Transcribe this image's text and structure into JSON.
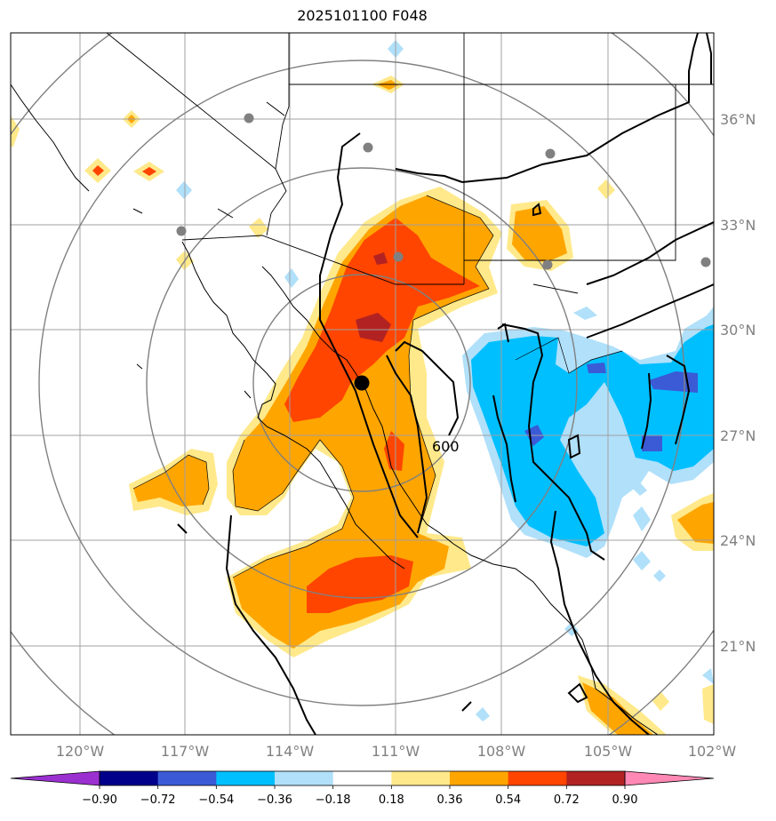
{
  "title": "2025101100 F048",
  "map": {
    "lon_labels": [
      "120°W",
      "117°W",
      "114°W",
      "111°W",
      "108°W",
      "105°W",
      "102°W"
    ],
    "lat_labels": [
      "36°N",
      "33°N",
      "30°N",
      "27°N",
      "24°N",
      "21°N"
    ],
    "contour_label": "600",
    "center_marker": {
      "lon": -112.0,
      "lat": 28.4
    },
    "ring_color": "#808080",
    "grid_color": "#a0a0a0"
  },
  "colorbar": {
    "labels": [
      "−0.90",
      "−0.72",
      "−0.54",
      "−0.36",
      "−0.18",
      "0.18",
      "0.36",
      "0.54",
      "0.72",
      "0.90"
    ],
    "colors": [
      "#9b30d0",
      "#00008b",
      "#3b5bd6",
      "#00bfff",
      "#b0e0fa",
      "#ffffff",
      "#ffe98a",
      "#ffa500",
      "#ff4500",
      "#b22222",
      "#ff88b4"
    ]
  }
}
